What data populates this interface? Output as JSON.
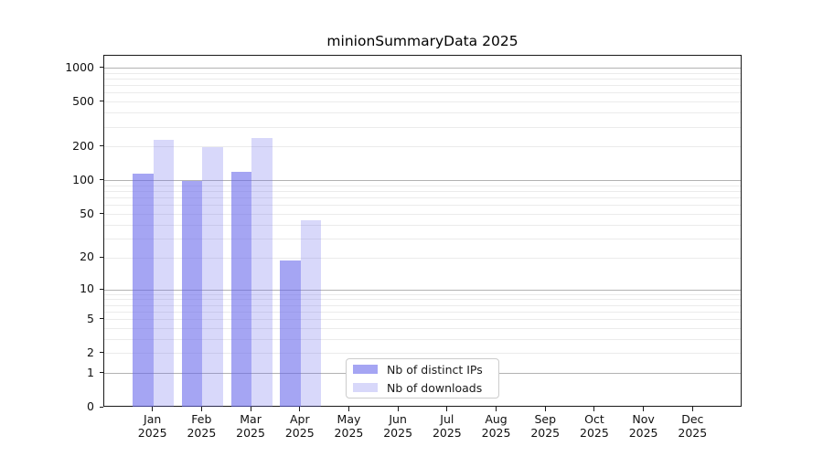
{
  "title": "minionSummaryData 2025",
  "legend": {
    "items": [
      {
        "label": "Nb of distinct IPs",
        "color": "rgba(100,100,235,0.58)"
      },
      {
        "label": "Nb of downloads",
        "color": "rgba(100,100,235,0.25)"
      }
    ]
  },
  "chart_data": {
    "type": "bar",
    "title": "minionSummaryData 2025",
    "xlabel": "",
    "ylabel": "",
    "yscale": "log(1+x)",
    "ylim": [
      0,
      1300
    ],
    "grid": "horizontal, minor + darker decade lines",
    "legend_position": "lower center-left inside axes",
    "categories": [
      "Jan",
      "Feb",
      "Mar",
      "Apr",
      "May",
      "Jun",
      "Jul",
      "Aug",
      "Sep",
      "Oct",
      "Nov",
      "Dec"
    ],
    "year_label": "2025",
    "series": [
      {
        "name": "Nb of distinct IPs",
        "color": "rgba(100,100,235,0.58)",
        "values": [
          115,
          100,
          120,
          19,
          0,
          0,
          0,
          0,
          0,
          0,
          0,
          0
        ]
      },
      {
        "name": "Nb of downloads",
        "color": "rgba(100,100,235,0.25)",
        "values": [
          230,
          200,
          240,
          44,
          0,
          0,
          0,
          0,
          0,
          0,
          0,
          0
        ]
      }
    ],
    "y_ticks": [
      1000,
      500,
      200,
      100,
      50,
      20,
      10,
      5,
      2,
      1,
      0
    ],
    "minor_grid_values": [
      2,
      3,
      4,
      5,
      6,
      7,
      8,
      9,
      20,
      30,
      40,
      50,
      60,
      70,
      80,
      90,
      200,
      300,
      400,
      500,
      600,
      700,
      800,
      900
    ],
    "major_grid_values": [
      1,
      10,
      100,
      1000
    ],
    "colors": {
      "major_grid": "#b3b3b3",
      "minor_grid": "#ebebeb",
      "spine": "#1a1a1a"
    }
  }
}
